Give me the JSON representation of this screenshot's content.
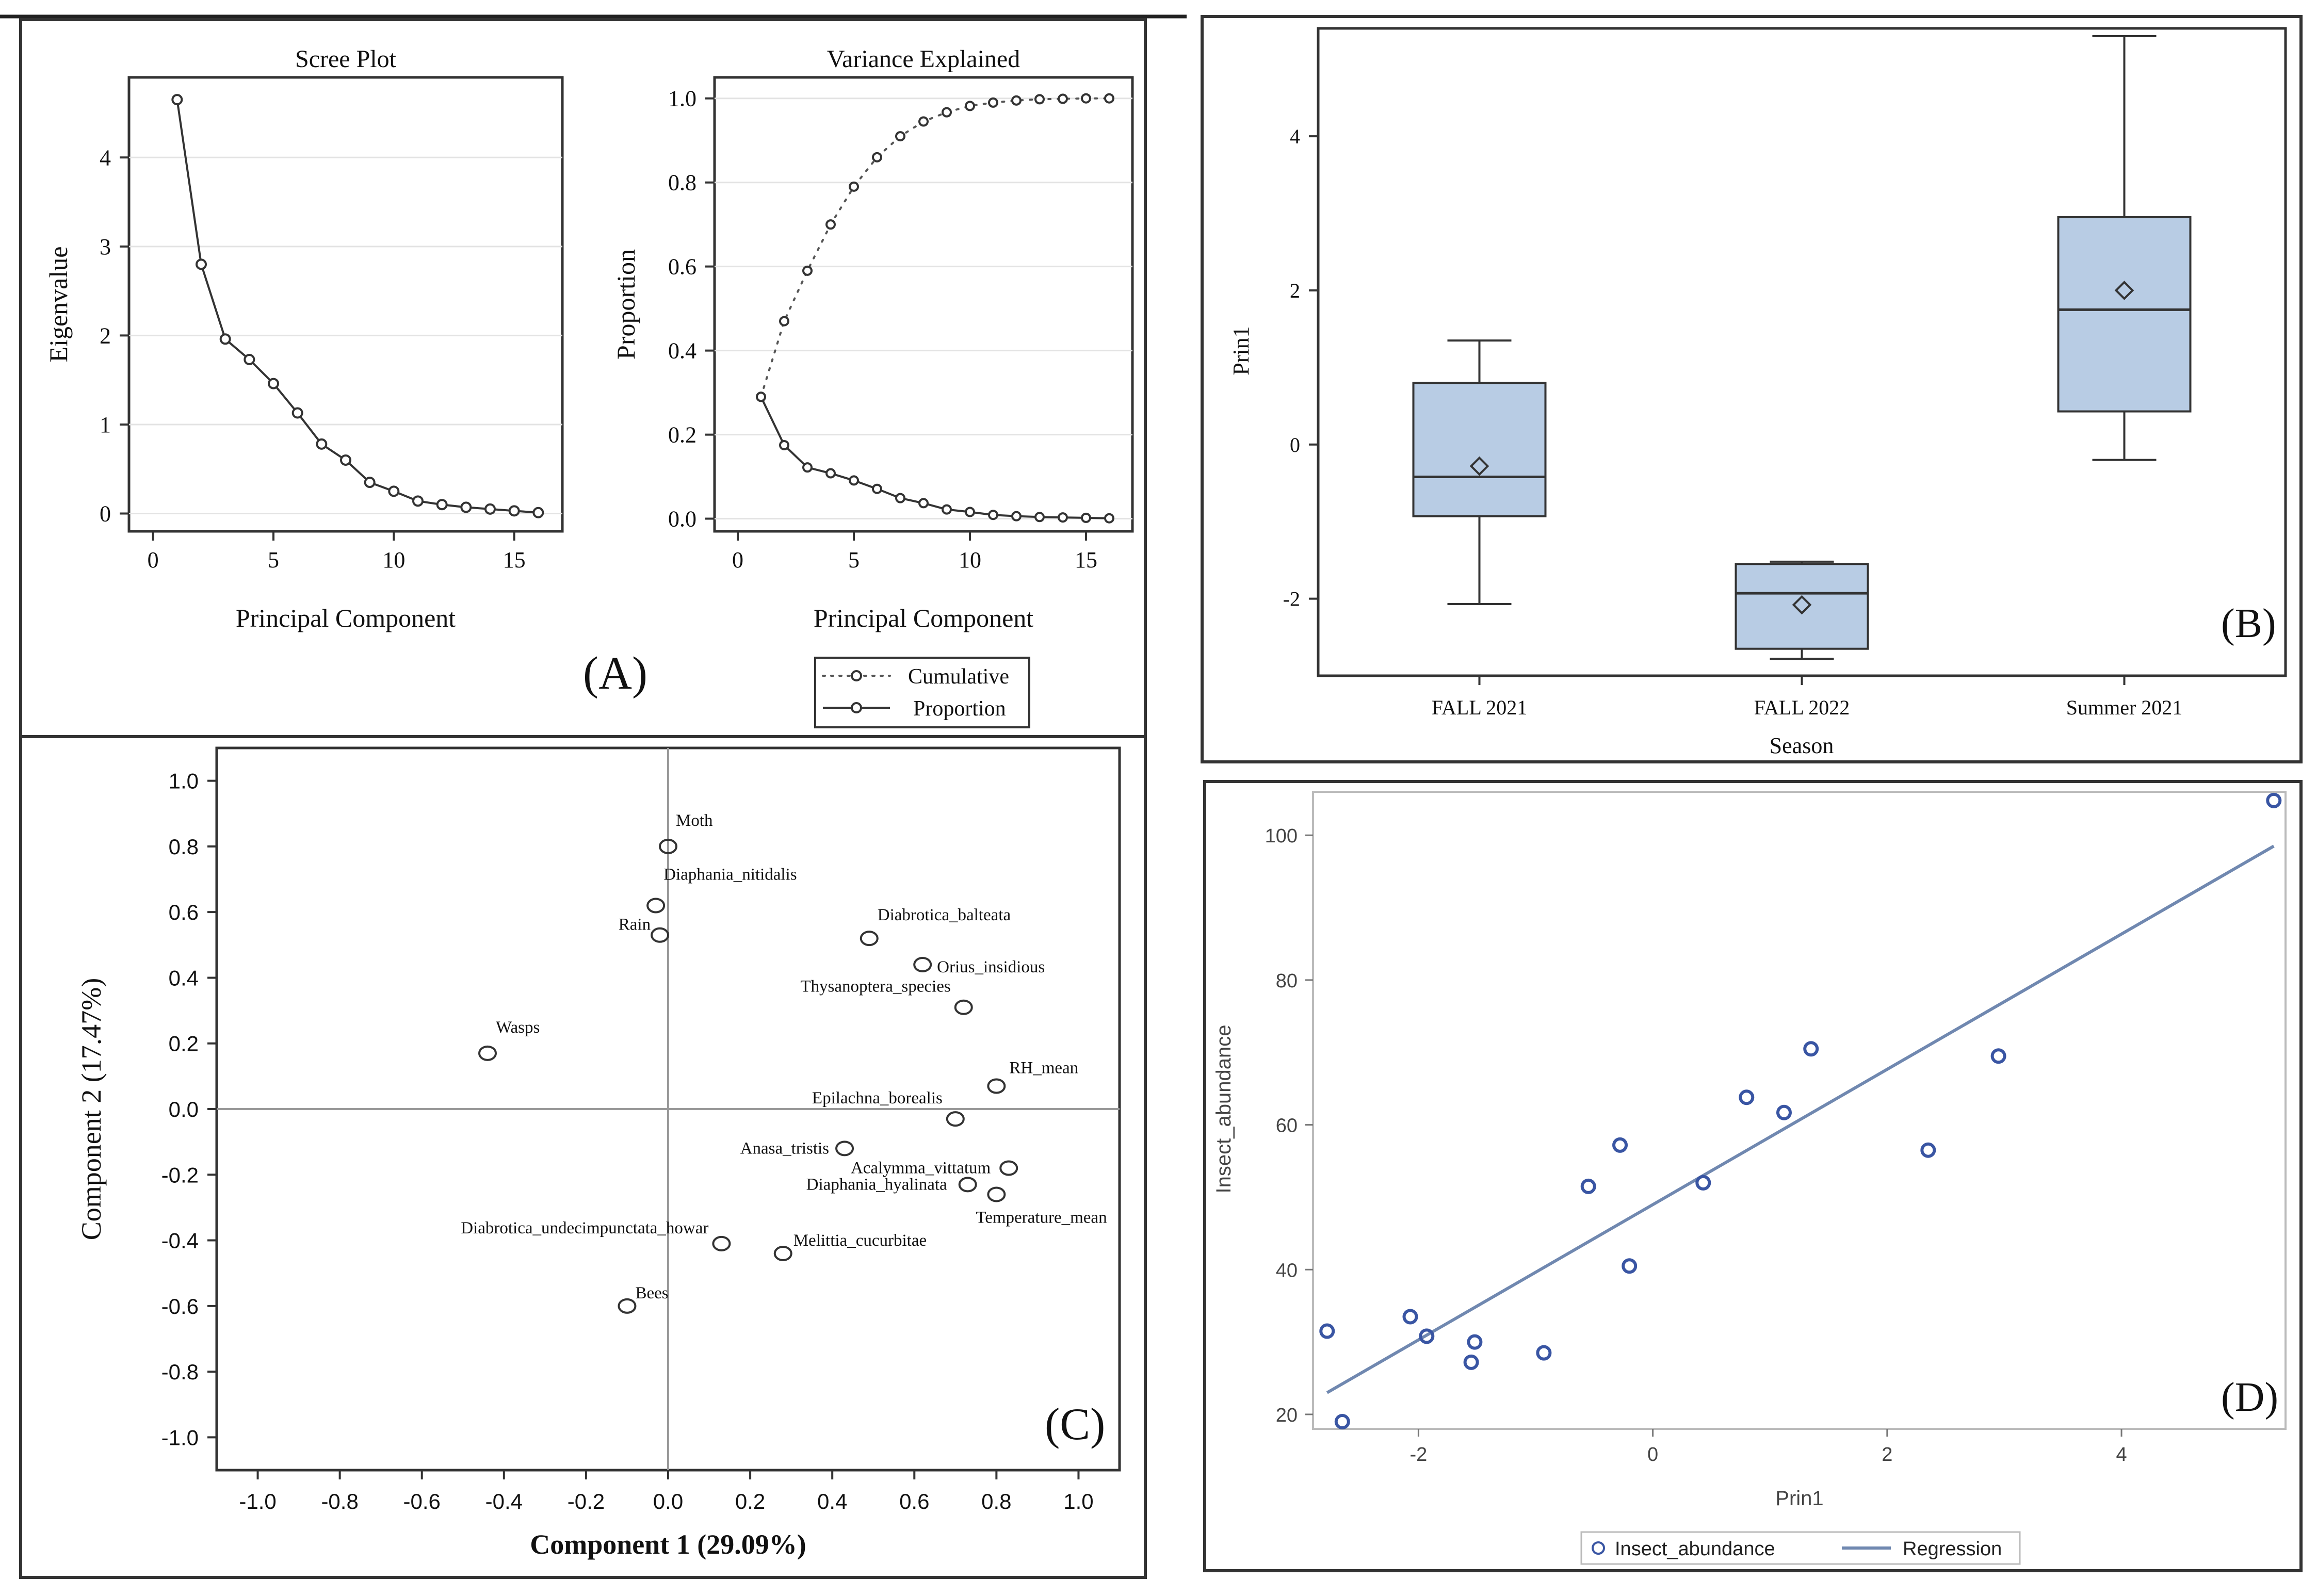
{
  "figure": {
    "panel_labels": [
      "(A)",
      "(B)",
      "(C)",
      "(D)"
    ]
  },
  "chart_data": [
    {
      "id": "scree",
      "type": "line",
      "title": "Scree Plot",
      "xlabel": "Principal Component",
      "ylabel": "Eigenvalue",
      "xlim": [
        -1,
        17
      ],
      "ylim": [
        -0.2,
        4.9
      ],
      "xticks": [
        0,
        5,
        10,
        15
      ],
      "yticks": [
        0,
        1,
        2,
        3,
        4
      ],
      "x": [
        1,
        2,
        3,
        4,
        5,
        6,
        7,
        8,
        9,
        10,
        11,
        12,
        13,
        14,
        15,
        16
      ],
      "values": [
        4.65,
        2.8,
        1.96,
        1.73,
        1.46,
        1.13,
        0.78,
        0.6,
        0.35,
        0.25,
        0.14,
        0.1,
        0.07,
        0.05,
        0.03,
        0.01
      ]
    },
    {
      "id": "variance",
      "type": "line",
      "title": "Variance Explained",
      "xlabel": "Principal Component",
      "ylabel": "Proportion",
      "xlim": [
        -1,
        17
      ],
      "ylim": [
        -0.03,
        1.05
      ],
      "xticks": [
        0,
        5,
        10,
        15
      ],
      "yticks": [
        0.0,
        0.2,
        0.4,
        0.6,
        0.8,
        1.0
      ],
      "x": [
        1,
        2,
        3,
        4,
        5,
        6,
        7,
        8,
        9,
        10,
        11,
        12,
        13,
        14,
        15,
        16
      ],
      "series": [
        {
          "name": "Cumulative",
          "style": "dotted",
          "values": [
            0.29,
            0.47,
            0.59,
            0.7,
            0.79,
            0.86,
            0.91,
            0.945,
            0.967,
            0.982,
            0.99,
            0.995,
            0.998,
            0.999,
            1.0,
            1.0
          ]
        },
        {
          "name": "Proportion",
          "style": "solid",
          "values": [
            0.29,
            0.175,
            0.122,
            0.108,
            0.091,
            0.071,
            0.049,
            0.037,
            0.022,
            0.016,
            0.009,
            0.006,
            0.004,
            0.003,
            0.002,
            0.001
          ]
        }
      ],
      "legend": [
        "Cumulative",
        "Proportion"
      ]
    },
    {
      "id": "boxplot",
      "type": "box",
      "xlabel": "Season",
      "ylabel": "Prin1",
      "ylim": [
        -3.0,
        5.4
      ],
      "yticks": [
        -2,
        0,
        2,
        4
      ],
      "categories": [
        "FALL 2021",
        "FALL 2022",
        "Summer 2021"
      ],
      "boxes": [
        {
          "min": -2.07,
          "q1": -0.93,
          "median": -0.42,
          "q3": 0.8,
          "max": 1.35,
          "mean": -0.28
        },
        {
          "min": -2.78,
          "q1": -2.65,
          "median": -1.93,
          "q3": -1.55,
          "max": -1.52,
          "mean": -2.08
        },
        {
          "min": -0.2,
          "q1": 0.43,
          "median": 1.75,
          "q3": 2.95,
          "max": 5.3,
          "mean": 2.0
        }
      ],
      "box_color": "#b8cce4"
    },
    {
      "id": "loadings",
      "type": "scatter",
      "xlabel": "Component 1 (29.09%)",
      "ylabel": "Component 2 (17.47%)",
      "xlim": [
        -1.1,
        1.1
      ],
      "ylim": [
        -1.1,
        1.1
      ],
      "xticks": [
        "-1.0",
        "-0.8",
        "-0.6",
        "-0.4",
        "-0.2",
        "0.0",
        "0.2",
        "0.4",
        "0.6",
        "0.8",
        "1.0"
      ],
      "yticks": [
        "1.0",
        "0.8",
        "0.6",
        "0.4",
        "0.2",
        "0.0",
        "-0.2",
        "-0.4",
        "-0.6",
        "-0.8",
        "-1.0"
      ],
      "points": [
        {
          "label": "Moth",
          "x": 0.0,
          "y": 0.8
        },
        {
          "label": "Diaphania_nitidalis",
          "x": -0.03,
          "y": 0.62
        },
        {
          "label": "Rain",
          "x": -0.02,
          "y": 0.53
        },
        {
          "label": "Diabrotica_balteata",
          "x": 0.49,
          "y": 0.52
        },
        {
          "label": "Orius_insidious",
          "x": 0.62,
          "y": 0.44
        },
        {
          "label": "Thysanoptera_species",
          "x": 0.72,
          "y": 0.31
        },
        {
          "label": "Wasps",
          "x": -0.44,
          "y": 0.17
        },
        {
          "label": "RH_mean",
          "x": 0.8,
          "y": 0.07
        },
        {
          "label": "Epilachna_borealis",
          "x": 0.7,
          "y": -0.03
        },
        {
          "label": "Anasa_tristis",
          "x": 0.43,
          "y": -0.12
        },
        {
          "label": "Acalymma_vittatum",
          "x": 0.83,
          "y": -0.18
        },
        {
          "label": "Diaphania_hyalinata",
          "x": 0.73,
          "y": -0.23
        },
        {
          "label": "Temperature_mean",
          "x": 0.8,
          "y": -0.26
        },
        {
          "label": "Diabrotica_undecimpunctata_howar",
          "x": 0.13,
          "y": -0.41
        },
        {
          "label": "Melittia_cucurbitae",
          "x": 0.28,
          "y": -0.44
        },
        {
          "label": "Bees",
          "x": -0.1,
          "y": -0.6
        }
      ]
    },
    {
      "id": "regression",
      "type": "scatter",
      "xlabel": "Prin1",
      "ylabel": "Insect_abundance",
      "xlim": [
        -2.9,
        5.4
      ],
      "ylim": [
        18,
        106
      ],
      "xticks": [
        -2,
        0,
        2,
        4
      ],
      "yticks": [
        20,
        40,
        60,
        80,
        100
      ],
      "points": [
        {
          "x": -2.78,
          "y": 31.5
        },
        {
          "x": -2.65,
          "y": 19.0
        },
        {
          "x": -2.07,
          "y": 33.5
        },
        {
          "x": -1.93,
          "y": 30.8
        },
        {
          "x": -1.52,
          "y": 30.0
        },
        {
          "x": -1.55,
          "y": 27.2
        },
        {
          "x": -0.93,
          "y": 28.5
        },
        {
          "x": -0.55,
          "y": 51.5
        },
        {
          "x": -0.28,
          "y": 57.2
        },
        {
          "x": -0.2,
          "y": 40.5
        },
        {
          "x": 0.43,
          "y": 52.0
        },
        {
          "x": 0.8,
          "y": 63.8
        },
        {
          "x": 1.35,
          "y": 70.5
        },
        {
          "x": 1.12,
          "y": 61.7
        },
        {
          "x": 2.35,
          "y": 56.5
        },
        {
          "x": 2.95,
          "y": 69.5
        },
        {
          "x": 5.3,
          "y": 104.8
        }
      ],
      "regression": {
        "x": [
          -2.78,
          5.3
        ],
        "y": [
          23.0,
          98.5
        ]
      },
      "legend": [
        "Insect_abundance",
        "Regression"
      ],
      "color": "#3955a3",
      "line_color": "#7088b0"
    }
  ]
}
